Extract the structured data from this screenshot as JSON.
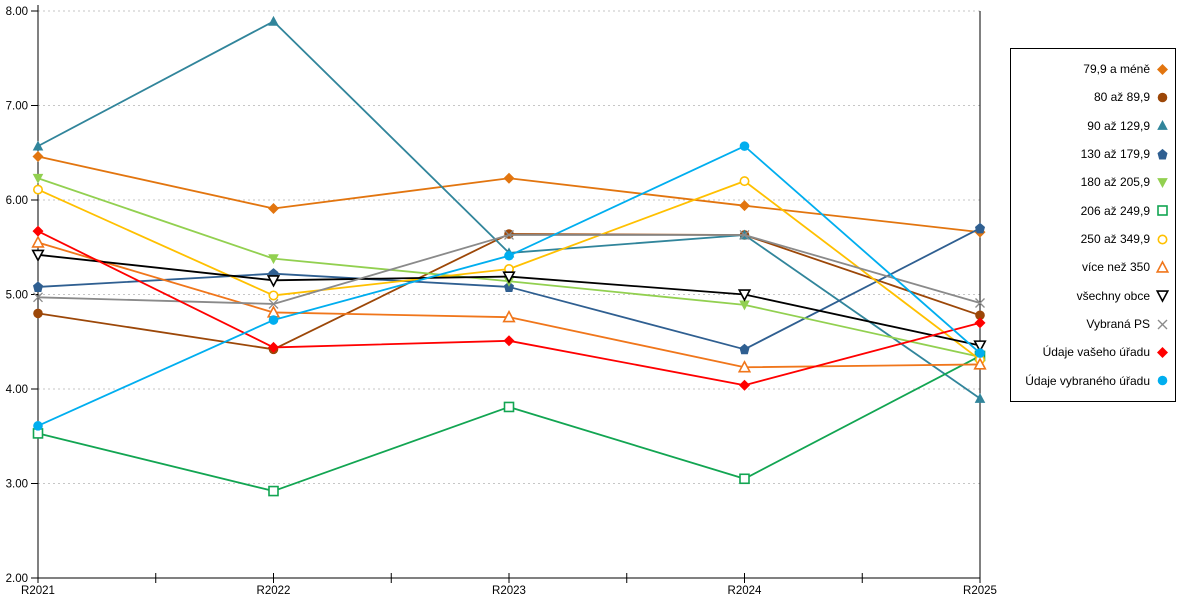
{
  "chart_data": {
    "type": "line",
    "title": "",
    "xlabel": "",
    "ylabel": "",
    "x": [
      "R2021",
      "R2022",
      "R2023",
      "R2024",
      "R2025"
    ],
    "ylim": [
      2.0,
      8.0
    ],
    "y_ticks": [
      {
        "value": 8,
        "label": "8.00"
      },
      {
        "value": 7,
        "label": "7.00"
      },
      {
        "value": 6,
        "label": "6.00"
      },
      {
        "value": 5,
        "label": "5.00"
      },
      {
        "value": 4,
        "label": "4.00"
      },
      {
        "value": 3,
        "label": "3.00"
      },
      {
        "value": 2,
        "label": "2.00"
      }
    ],
    "grid": "horizontal-dashed",
    "grid_color": "#c6c6c6",
    "axis_color": "#000000",
    "legend_position": "right-box",
    "series": [
      {
        "name": "79,9 a méně",
        "marker": "diamond",
        "filled": true,
        "color": "#E2750F",
        "values": [
          6.46,
          5.91,
          6.23,
          5.94,
          5.66
        ]
      },
      {
        "name": "80 až 89,9",
        "marker": "circle",
        "filled": true,
        "color": "#9C4708",
        "values": [
          4.8,
          4.42,
          5.64,
          5.63,
          4.78
        ]
      },
      {
        "name": "90 až 129,9",
        "marker": "triangle-up",
        "filled": true,
        "color": "#31859B",
        "values": [
          6.57,
          7.89,
          5.44,
          5.63,
          3.9
        ]
      },
      {
        "name": "130 až 179,9",
        "marker": "pentagon",
        "filled": true,
        "color": "#2F5F91",
        "values": [
          5.08,
          5.22,
          5.08,
          4.42,
          5.7
        ]
      },
      {
        "name": "180 až 205,9",
        "marker": "triangle-down",
        "filled": true,
        "color": "#92D050",
        "values": [
          6.23,
          5.38,
          5.14,
          4.89,
          4.34
        ]
      },
      {
        "name": "206 až 249,9",
        "marker": "square",
        "filled": false,
        "color": "#12A552",
        "values": [
          3.53,
          2.92,
          3.81,
          3.05,
          4.35
        ]
      },
      {
        "name": "250 až 349,9",
        "marker": "circle",
        "filled": false,
        "color": "#FFC000",
        "values": [
          6.11,
          4.99,
          5.27,
          6.2,
          4.31
        ]
      },
      {
        "name": "více než 350",
        "marker": "triangle-up",
        "filled": false,
        "color": "#F0761B",
        "values": [
          5.55,
          4.81,
          4.76,
          4.23,
          4.26
        ]
      },
      {
        "name": "všechny obce",
        "marker": "triangle-down",
        "filled": false,
        "color": "#000000",
        "values": [
          5.42,
          5.15,
          5.19,
          5.0,
          4.46
        ]
      },
      {
        "name": "Vybraná PS",
        "marker": "x",
        "filled": false,
        "color": "#8A8A8A",
        "values": [
          4.97,
          4.9,
          5.63,
          5.63,
          4.91
        ]
      },
      {
        "name": "Údaje vašeho úřadu",
        "marker": "diamond",
        "filled": true,
        "color": "#FF0000",
        "values": [
          5.67,
          4.44,
          4.51,
          4.04,
          4.7
        ]
      },
      {
        "name": "Údaje vybraného úřadu",
        "marker": "circle",
        "filled": true,
        "color": "#00AEEF",
        "values": [
          3.61,
          4.73,
          5.41,
          6.57,
          4.38
        ]
      }
    ]
  }
}
